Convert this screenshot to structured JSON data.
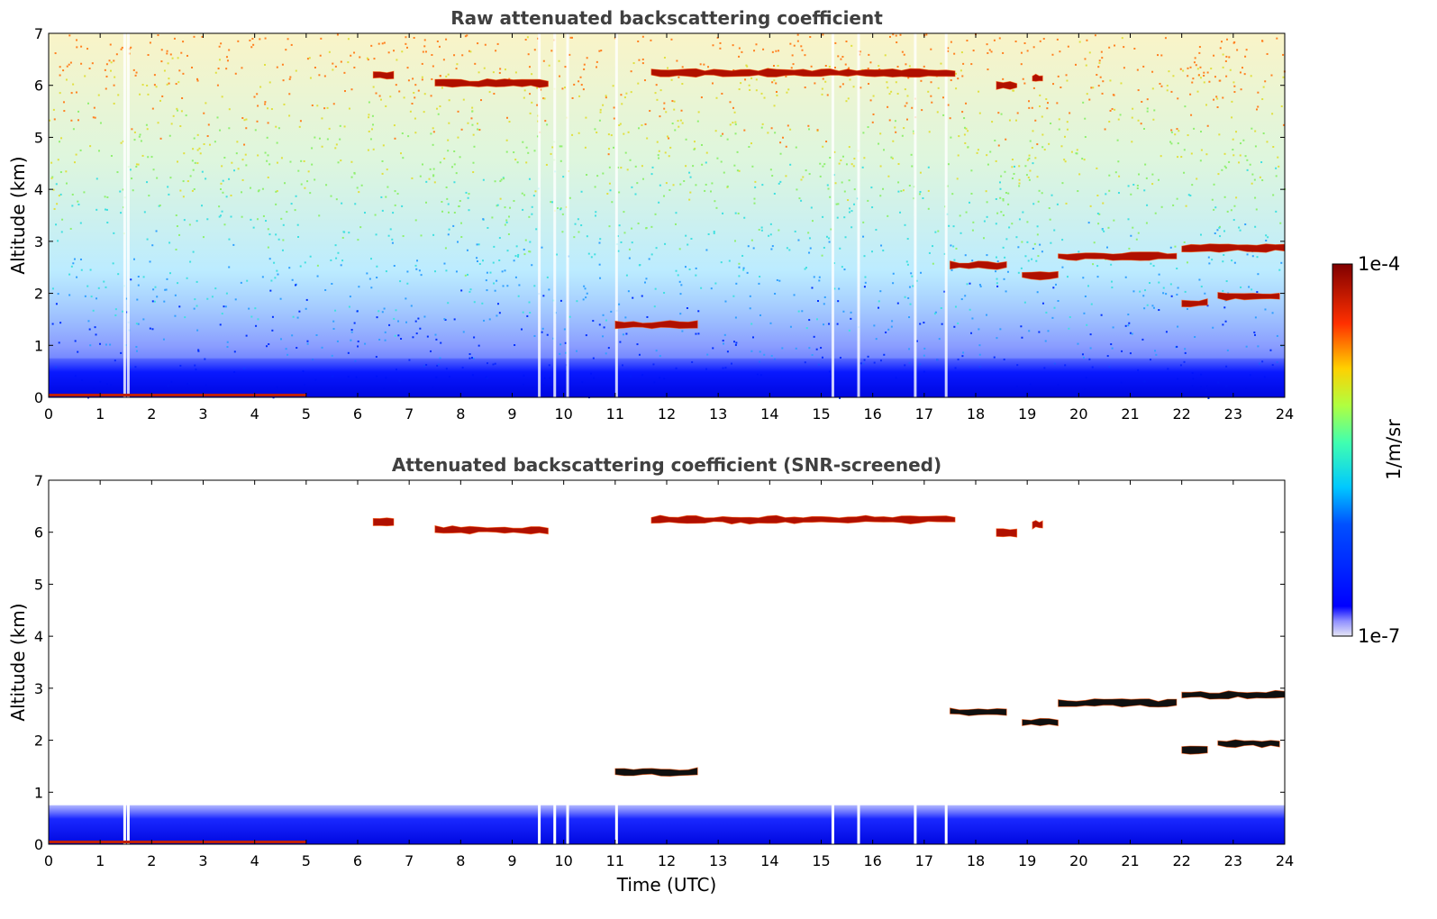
{
  "chart_data": [
    {
      "type": "heatmap",
      "title": "Raw attenuated backscattering coefficient",
      "xlabel": "",
      "ylabel": "Altitude (km)",
      "xlim": [
        0,
        24
      ],
      "ylim": [
        0,
        7
      ],
      "xticks": [
        "0",
        "1",
        "2",
        "3",
        "4",
        "5",
        "6",
        "7",
        "8",
        "9",
        "10",
        "11",
        "12",
        "13",
        "14",
        "15",
        "16",
        "17",
        "18",
        "19",
        "20",
        "21",
        "22",
        "23",
        "24"
      ],
      "yticks": [
        "0",
        "1",
        "2",
        "3",
        "4",
        "5",
        "6",
        "7"
      ],
      "features": [
        {
          "kind": "cloud_layer",
          "t_start": 6.3,
          "t_end": 6.7,
          "alt_km": 6.2
        },
        {
          "kind": "cloud_layer",
          "t_start": 7.5,
          "t_end": 9.7,
          "alt_km": 6.05
        },
        {
          "kind": "cloud_layer",
          "t_start": 11.7,
          "t_end": 17.6,
          "alt_km": 6.25
        },
        {
          "kind": "cloud_layer",
          "t_start": 18.4,
          "t_end": 18.8,
          "alt_km": 6.0
        },
        {
          "kind": "cloud_layer",
          "t_start": 19.1,
          "t_end": 19.3,
          "alt_km": 6.15
        },
        {
          "kind": "cloud_layer",
          "t_start": 11.0,
          "t_end": 12.6,
          "alt_km": 1.4
        },
        {
          "kind": "cloud_layer",
          "t_start": 17.5,
          "t_end": 18.6,
          "alt_km": 2.55
        },
        {
          "kind": "cloud_layer",
          "t_start": 18.9,
          "t_end": 19.6,
          "alt_km": 2.35
        },
        {
          "kind": "cloud_layer",
          "t_start": 19.6,
          "t_end": 21.9,
          "alt_km": 2.72
        },
        {
          "kind": "cloud_layer",
          "t_start": 22.0,
          "t_end": 24.0,
          "alt_km": 2.88
        },
        {
          "kind": "cloud_layer",
          "t_start": 22.0,
          "t_end": 22.5,
          "alt_km": 1.82
        },
        {
          "kind": "cloud_layer",
          "t_start": 22.7,
          "t_end": 23.9,
          "alt_km": 1.95
        },
        {
          "kind": "boundary_layer",
          "t_start": 0,
          "t_end": 24,
          "alt_km_top": 0.75
        }
      ]
    },
    {
      "type": "heatmap",
      "title": "Attenuated backscattering coefficient (SNR-screened)",
      "xlabel": "Time (UTC)",
      "ylabel": "Altitude (km)",
      "xlim": [
        0,
        24
      ],
      "ylim": [
        0,
        7
      ],
      "xticks": [
        "0",
        "1",
        "2",
        "3",
        "4",
        "5",
        "6",
        "7",
        "8",
        "9",
        "10",
        "11",
        "12",
        "13",
        "14",
        "15",
        "16",
        "17",
        "18",
        "19",
        "20",
        "21",
        "22",
        "23",
        "24"
      ],
      "yticks": [
        "0",
        "1",
        "2",
        "3",
        "4",
        "5",
        "6",
        "7"
      ]
    }
  ],
  "colorbar": {
    "label": "1/m/sr",
    "max_label": "1e-4",
    "min_label": "1e-7",
    "colormap": "jet",
    "colors": [
      "#e6e6f5",
      "#0000ff",
      "#00c8ff",
      "#80ff80",
      "#ffd000",
      "#ff3000",
      "#800000"
    ]
  }
}
